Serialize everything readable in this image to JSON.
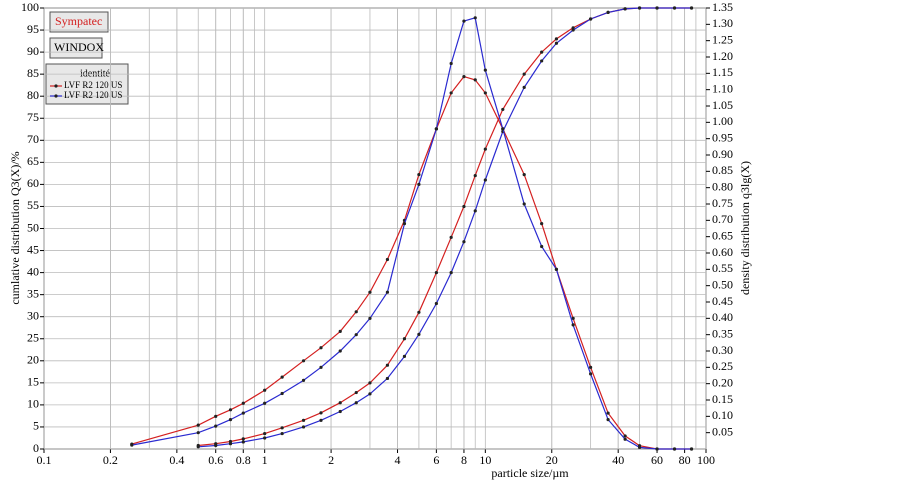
{
  "chart_data": {
    "type": "line",
    "x_label": "particle size/µm",
    "y_label": "cumlative distribution Q3(X)/%",
    "y2_label": "density distribution q3lg(X)",
    "badges": [
      "Sympatec",
      "WINDOX"
    ],
    "legend_title": "identité",
    "log_x": true,
    "grid": true,
    "xlim": [
      0.1,
      100
    ],
    "ylim": [
      0,
      100
    ],
    "y2lim": [
      0,
      1.35
    ],
    "xticks": [
      0.1,
      0.2,
      0.4,
      0.6,
      0.8,
      1,
      2,
      4,
      6,
      8,
      10,
      20,
      40,
      60,
      80,
      100
    ],
    "yticks": [
      0,
      5,
      10,
      15,
      20,
      25,
      30,
      35,
      40,
      45,
      50,
      55,
      60,
      65,
      70,
      75,
      80,
      85,
      90,
      95,
      100
    ],
    "y2ticks": [
      0.05,
      {
        "value": 0.1,
        "label": "0.10"
      },
      0.15,
      {
        "value": 0.2,
        "label": "0.20"
      },
      0.25,
      {
        "value": 0.3,
        "label": "0.30"
      },
      0.35,
      {
        "value": 0.4,
        "label": "0.40"
      },
      0.45,
      {
        "value": 0.5,
        "label": "0.50"
      },
      0.55,
      {
        "value": 0.6,
        "label": "0.60"
      },
      0.65,
      {
        "value": 0.7,
        "label": "0.70"
      },
      0.75,
      {
        "value": 0.8,
        "label": "0.80"
      },
      0.85,
      {
        "value": 0.9,
        "label": "0.90"
      },
      0.95,
      {
        "value": 1,
        "label": "1.00"
      },
      1.05,
      {
        "value": 1.1,
        "label": "1.10"
      },
      1.15,
      {
        "value": 1.2,
        "label": "1.20"
      },
      1.25,
      {
        "value": 1.3,
        "label": "1.30"
      },
      1.35
    ],
    "x": [
      0.25,
      0.5,
      0.6,
      0.7,
      0.8,
      1,
      1.2,
      1.5,
      1.8,
      2.2,
      2.6,
      3,
      3.6,
      4.3,
      5,
      6,
      7,
      8,
      9,
      10,
      12,
      15,
      18,
      21,
      25,
      30,
      36,
      43,
      50,
      60,
      72,
      86
    ],
    "series": [
      {
        "name": "LVF R2 120 US",
        "color": "#d42020",
        "values": [
          null,
          0.8,
          1.2,
          1.7,
          2.3,
          3.5,
          4.8,
          6.5,
          8.2,
          10.5,
          12.8,
          15,
          19,
          25,
          31,
          40,
          48,
          55,
          62,
          68,
          77,
          85,
          90,
          93,
          95.5,
          97.5,
          99,
          99.8,
          100,
          100,
          100,
          100
        ],
        "density": [
          0.015,
          0.073,
          0.1,
          0.12,
          0.14,
          0.18,
          0.22,
          0.27,
          0.31,
          0.36,
          0.42,
          0.48,
          0.58,
          0.7,
          0.84,
          0.98,
          1.09,
          1.14,
          1.13,
          1.09,
          0.98,
          0.84,
          0.69,
          0.55,
          0.4,
          0.25,
          0.11,
          0.04,
          0.01,
          0,
          0,
          0
        ]
      },
      {
        "name": "LVF R2 120 US",
        "color": "#2a2ad0",
        "values": [
          null,
          0.5,
          0.8,
          1.2,
          1.6,
          2.5,
          3.5,
          5,
          6.5,
          8.5,
          10.5,
          12.5,
          16,
          21,
          26,
          33,
          40,
          47,
          54,
          61,
          72,
          82,
          88,
          92,
          95,
          97.5,
          99,
          99.8,
          100,
          100,
          100,
          100
        ],
        "density": [
          0.012,
          0.05,
          0.07,
          0.09,
          0.11,
          0.14,
          0.17,
          0.21,
          0.25,
          0.3,
          0.35,
          0.4,
          0.48,
          0.69,
          0.81,
          0.98,
          1.18,
          1.31,
          1.32,
          1.16,
          0.98,
          0.75,
          0.62,
          0.55,
          0.38,
          0.23,
          0.09,
          0.03,
          0.005,
          0,
          0,
          0
        ]
      }
    ]
  }
}
